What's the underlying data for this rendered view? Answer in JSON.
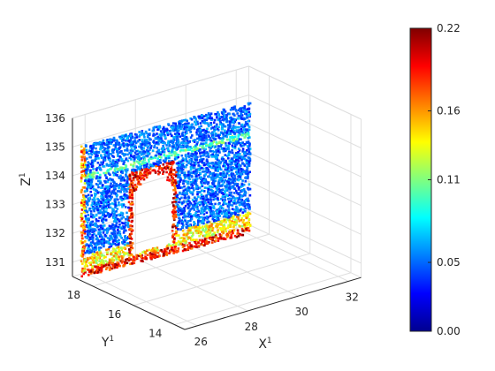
{
  "chart_data": {
    "type": "scatter",
    "subtype": "3d-point-cloud",
    "title": "",
    "xlabel": "X",
    "xlabel_sup": "1",
    "ylabel": "Y",
    "ylabel_sup": "1",
    "zlabel": "Z",
    "zlabel_sup": "1",
    "x_ticks": [
      "26",
      "28",
      "30",
      "32"
    ],
    "y_ticks": [
      "14",
      "16",
      "18"
    ],
    "z_ticks": [
      "131",
      "132",
      "133",
      "134",
      "135",
      "136"
    ],
    "xlim": [
      25.5,
      32.5
    ],
    "ylim": [
      13.5,
      19
    ],
    "zlim": [
      130.5,
      136
    ],
    "grid": true,
    "colormap": "jet",
    "color_values": [
      0.0,
      0.22
    ],
    "colorbar": {
      "position": "right",
      "ticks": [
        "0.22",
        "0.16",
        "0.11",
        "0.05",
        "0.00"
      ],
      "tick_values": [
        0.22,
        0.16,
        0.11,
        0.05,
        0.0
      ]
    },
    "object": "wall facade with central arched doorway",
    "colors": {
      "low": "#00008f",
      "mid": "#00ffff",
      "high": "#800000"
    }
  }
}
